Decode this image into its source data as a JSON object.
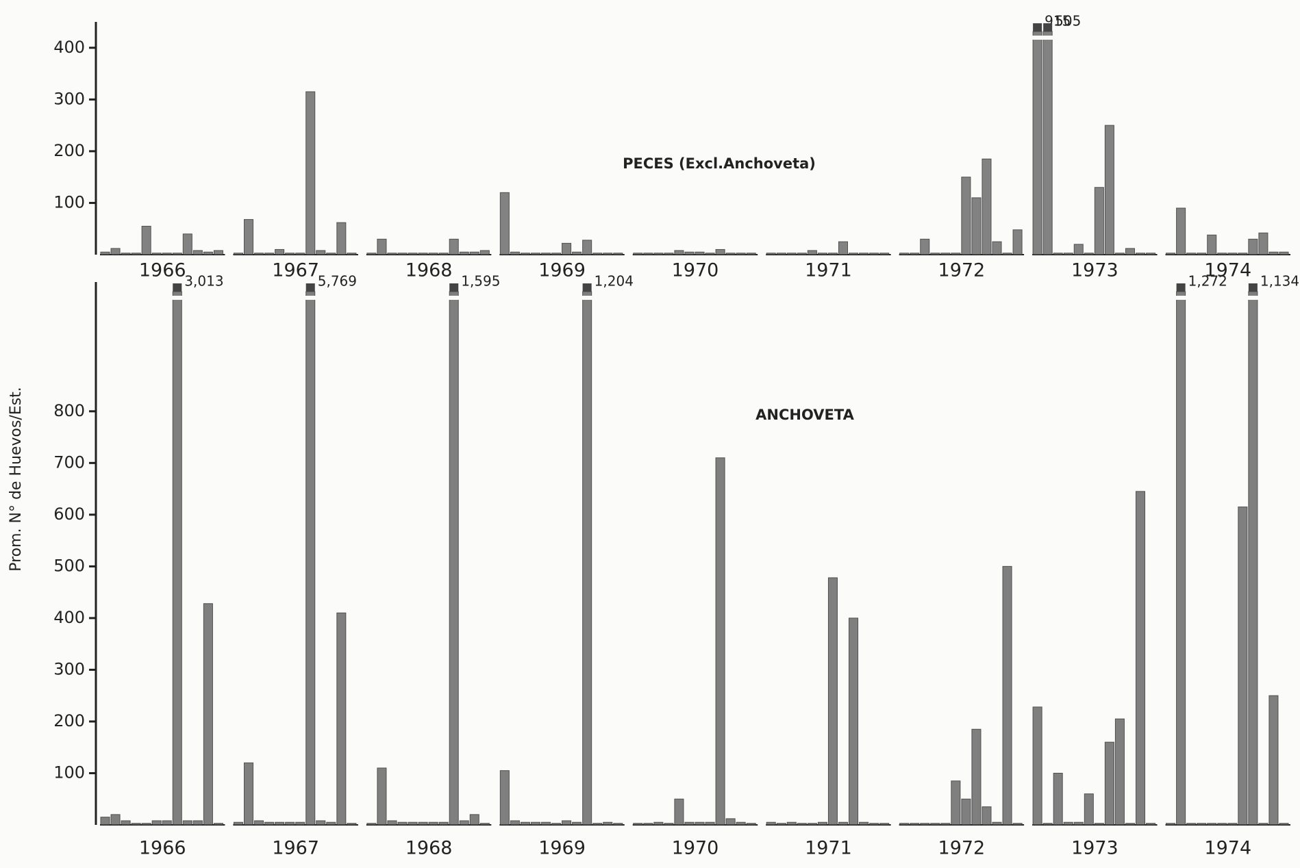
{
  "chart_data": [
    {
      "type": "bar",
      "title": "PECES (Excl.Anchoveta)",
      "color": "#6e6e6e",
      "ylim": [
        0,
        450
      ],
      "yticks": [
        100,
        200,
        300,
        400
      ],
      "groups": [
        {
          "label": "1966",
          "values": [
            5,
            12,
            3,
            3,
            55,
            3,
            3,
            3,
            40,
            8,
            5,
            8
          ]
        },
        {
          "label": "1967",
          "values": [
            3,
            68,
            3,
            3,
            10,
            3,
            3,
            315,
            8,
            3,
            62,
            3
          ]
        },
        {
          "label": "1968",
          "values": [
            3,
            30,
            3,
            3,
            3,
            3,
            3,
            3,
            30,
            5,
            5,
            8
          ]
        },
        {
          "label": "1969",
          "values": [
            120,
            5,
            3,
            3,
            3,
            3,
            22,
            5,
            28,
            3,
            3,
            3
          ]
        },
        {
          "label": "1970",
          "values": [
            3,
            3,
            3,
            3,
            8,
            5,
            5,
            3,
            10,
            3,
            3,
            3
          ]
        },
        {
          "label": "1971",
          "values": [
            3,
            3,
            3,
            3,
            8,
            3,
            3,
            25,
            3,
            3,
            3,
            3
          ]
        },
        {
          "label": "1972",
          "values": [
            3,
            3,
            30,
            3,
            3,
            3,
            150,
            110,
            185,
            25,
            3,
            48
          ]
        },
        {
          "label": "1973",
          "values": [
            915,
            505,
            3,
            3,
            20,
            3,
            130,
            250,
            3,
            12,
            3,
            3
          ],
          "value_labels": [
            "915",
            "505",
            null,
            null,
            null,
            null,
            null,
            null,
            null,
            null,
            null,
            null
          ]
        },
        {
          "label": "1974",
          "values": [
            3,
            90,
            3,
            3,
            38,
            3,
            3,
            3,
            30,
            42,
            5,
            5
          ]
        }
      ]
    },
    {
      "type": "bar",
      "title": "ANCHOVETA",
      "ylabel": "Prom. N° de Huevos/Est.",
      "color": "#6a6a6a",
      "ylim": [
        0,
        1050
      ],
      "yticks": [
        100,
        200,
        300,
        400,
        500,
        600,
        700,
        800
      ],
      "groups": [
        {
          "label": "1966",
          "values": [
            15,
            20,
            8,
            3,
            3,
            8,
            8,
            3013,
            8,
            8,
            428,
            3
          ],
          "value_labels": [
            null,
            null,
            null,
            null,
            null,
            null,
            null,
            "3,013",
            null,
            null,
            null,
            null
          ]
        },
        {
          "label": "1967",
          "values": [
            5,
            120,
            8,
            5,
            5,
            5,
            5,
            5769,
            8,
            5,
            410,
            3
          ],
          "value_labels": [
            null,
            null,
            null,
            null,
            null,
            null,
            null,
            "5,769",
            null,
            null,
            null,
            null
          ]
        },
        {
          "label": "1968",
          "values": [
            3,
            110,
            8,
            5,
            5,
            5,
            5,
            5,
            1595,
            8,
            20,
            3
          ],
          "value_labels": [
            null,
            null,
            null,
            null,
            null,
            null,
            null,
            null,
            "1,595",
            null,
            null,
            null
          ]
        },
        {
          "label": "1969",
          "values": [
            105,
            8,
            5,
            5,
            5,
            3,
            8,
            5,
            1204,
            3,
            5,
            3
          ],
          "value_labels": [
            null,
            null,
            null,
            null,
            null,
            null,
            null,
            null,
            "1,204",
            null,
            null,
            null
          ]
        },
        {
          "label": "1970",
          "values": [
            3,
            3,
            5,
            3,
            50,
            5,
            5,
            5,
            710,
            12,
            5,
            3
          ]
        },
        {
          "label": "1971",
          "values": [
            5,
            3,
            5,
            3,
            3,
            5,
            478,
            5,
            400,
            5,
            3,
            3
          ]
        },
        {
          "label": "1972",
          "values": [
            3,
            3,
            3,
            3,
            3,
            85,
            50,
            185,
            35,
            5,
            500,
            3
          ]
        },
        {
          "label": "1973",
          "values": [
            228,
            3,
            100,
            5,
            5,
            60,
            3,
            160,
            205,
            3,
            645,
            3
          ]
        },
        {
          "label": "1974",
          "values": [
            3,
            1272,
            3,
            3,
            3,
            3,
            3,
            615,
            1134,
            3,
            250,
            3
          ],
          "value_labels": [
            null,
            "1,272",
            null,
            null,
            null,
            null,
            null,
            null,
            "1,134",
            null,
            null,
            null
          ]
        }
      ]
    }
  ]
}
